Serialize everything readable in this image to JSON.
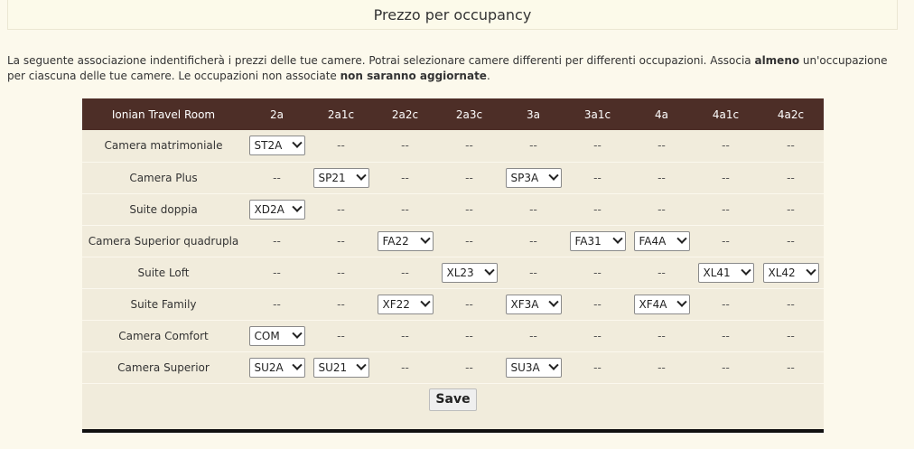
{
  "title": "Prezzo per occupancy",
  "intro": {
    "part1": "La seguente associazione indentificherà i prezzi delle tue camere. Potrai selezionare camere differenti per differenti occupazioni. Associa ",
    "bold1": "almeno",
    "part2": " un'occupazione per ciascuna delle tue camere. Le occupazioni non associate ",
    "bold2": "non saranno aggiornate",
    "part3": "."
  },
  "table": {
    "header_room": "Ionian Travel Room",
    "occupancies": [
      "2a",
      "2a1c",
      "2a2c",
      "2a3c",
      "3a",
      "3a1c",
      "4a",
      "4a1c",
      "4a2c"
    ],
    "dash": "--",
    "rows": [
      {
        "name": "Camera matrimoniale",
        "cells": [
          "ST2A",
          null,
          null,
          null,
          null,
          null,
          null,
          null,
          null
        ]
      },
      {
        "name": "Camera Plus",
        "cells": [
          null,
          "SP21",
          null,
          null,
          "SP3A",
          null,
          null,
          null,
          null
        ]
      },
      {
        "name": "Suite doppia",
        "cells": [
          "XD2A",
          null,
          null,
          null,
          null,
          null,
          null,
          null,
          null
        ]
      },
      {
        "name": "Camera Superior quadrupla",
        "cells": [
          null,
          null,
          "FA22",
          null,
          null,
          "FA31",
          "FA4A",
          null,
          null
        ]
      },
      {
        "name": "Suite Loft",
        "cells": [
          null,
          null,
          null,
          "XL23",
          null,
          null,
          null,
          "XL41",
          "XL42"
        ]
      },
      {
        "name": "Suite Family",
        "cells": [
          null,
          null,
          "XF22",
          null,
          "XF3A",
          null,
          "XF4A",
          null,
          null
        ]
      },
      {
        "name": "Camera Comfort",
        "cells": [
          "COM",
          null,
          null,
          null,
          null,
          null,
          null,
          null,
          null
        ]
      },
      {
        "name": "Camera Superior",
        "cells": [
          "SU2A",
          "SU21",
          null,
          null,
          "SU3A",
          null,
          null,
          null,
          null
        ]
      }
    ]
  },
  "save_label": "Save",
  "colors": {
    "header_bg": "#4d2e27",
    "row_bg": "#f1ecdc",
    "page_bg": "#fcf9ec"
  }
}
